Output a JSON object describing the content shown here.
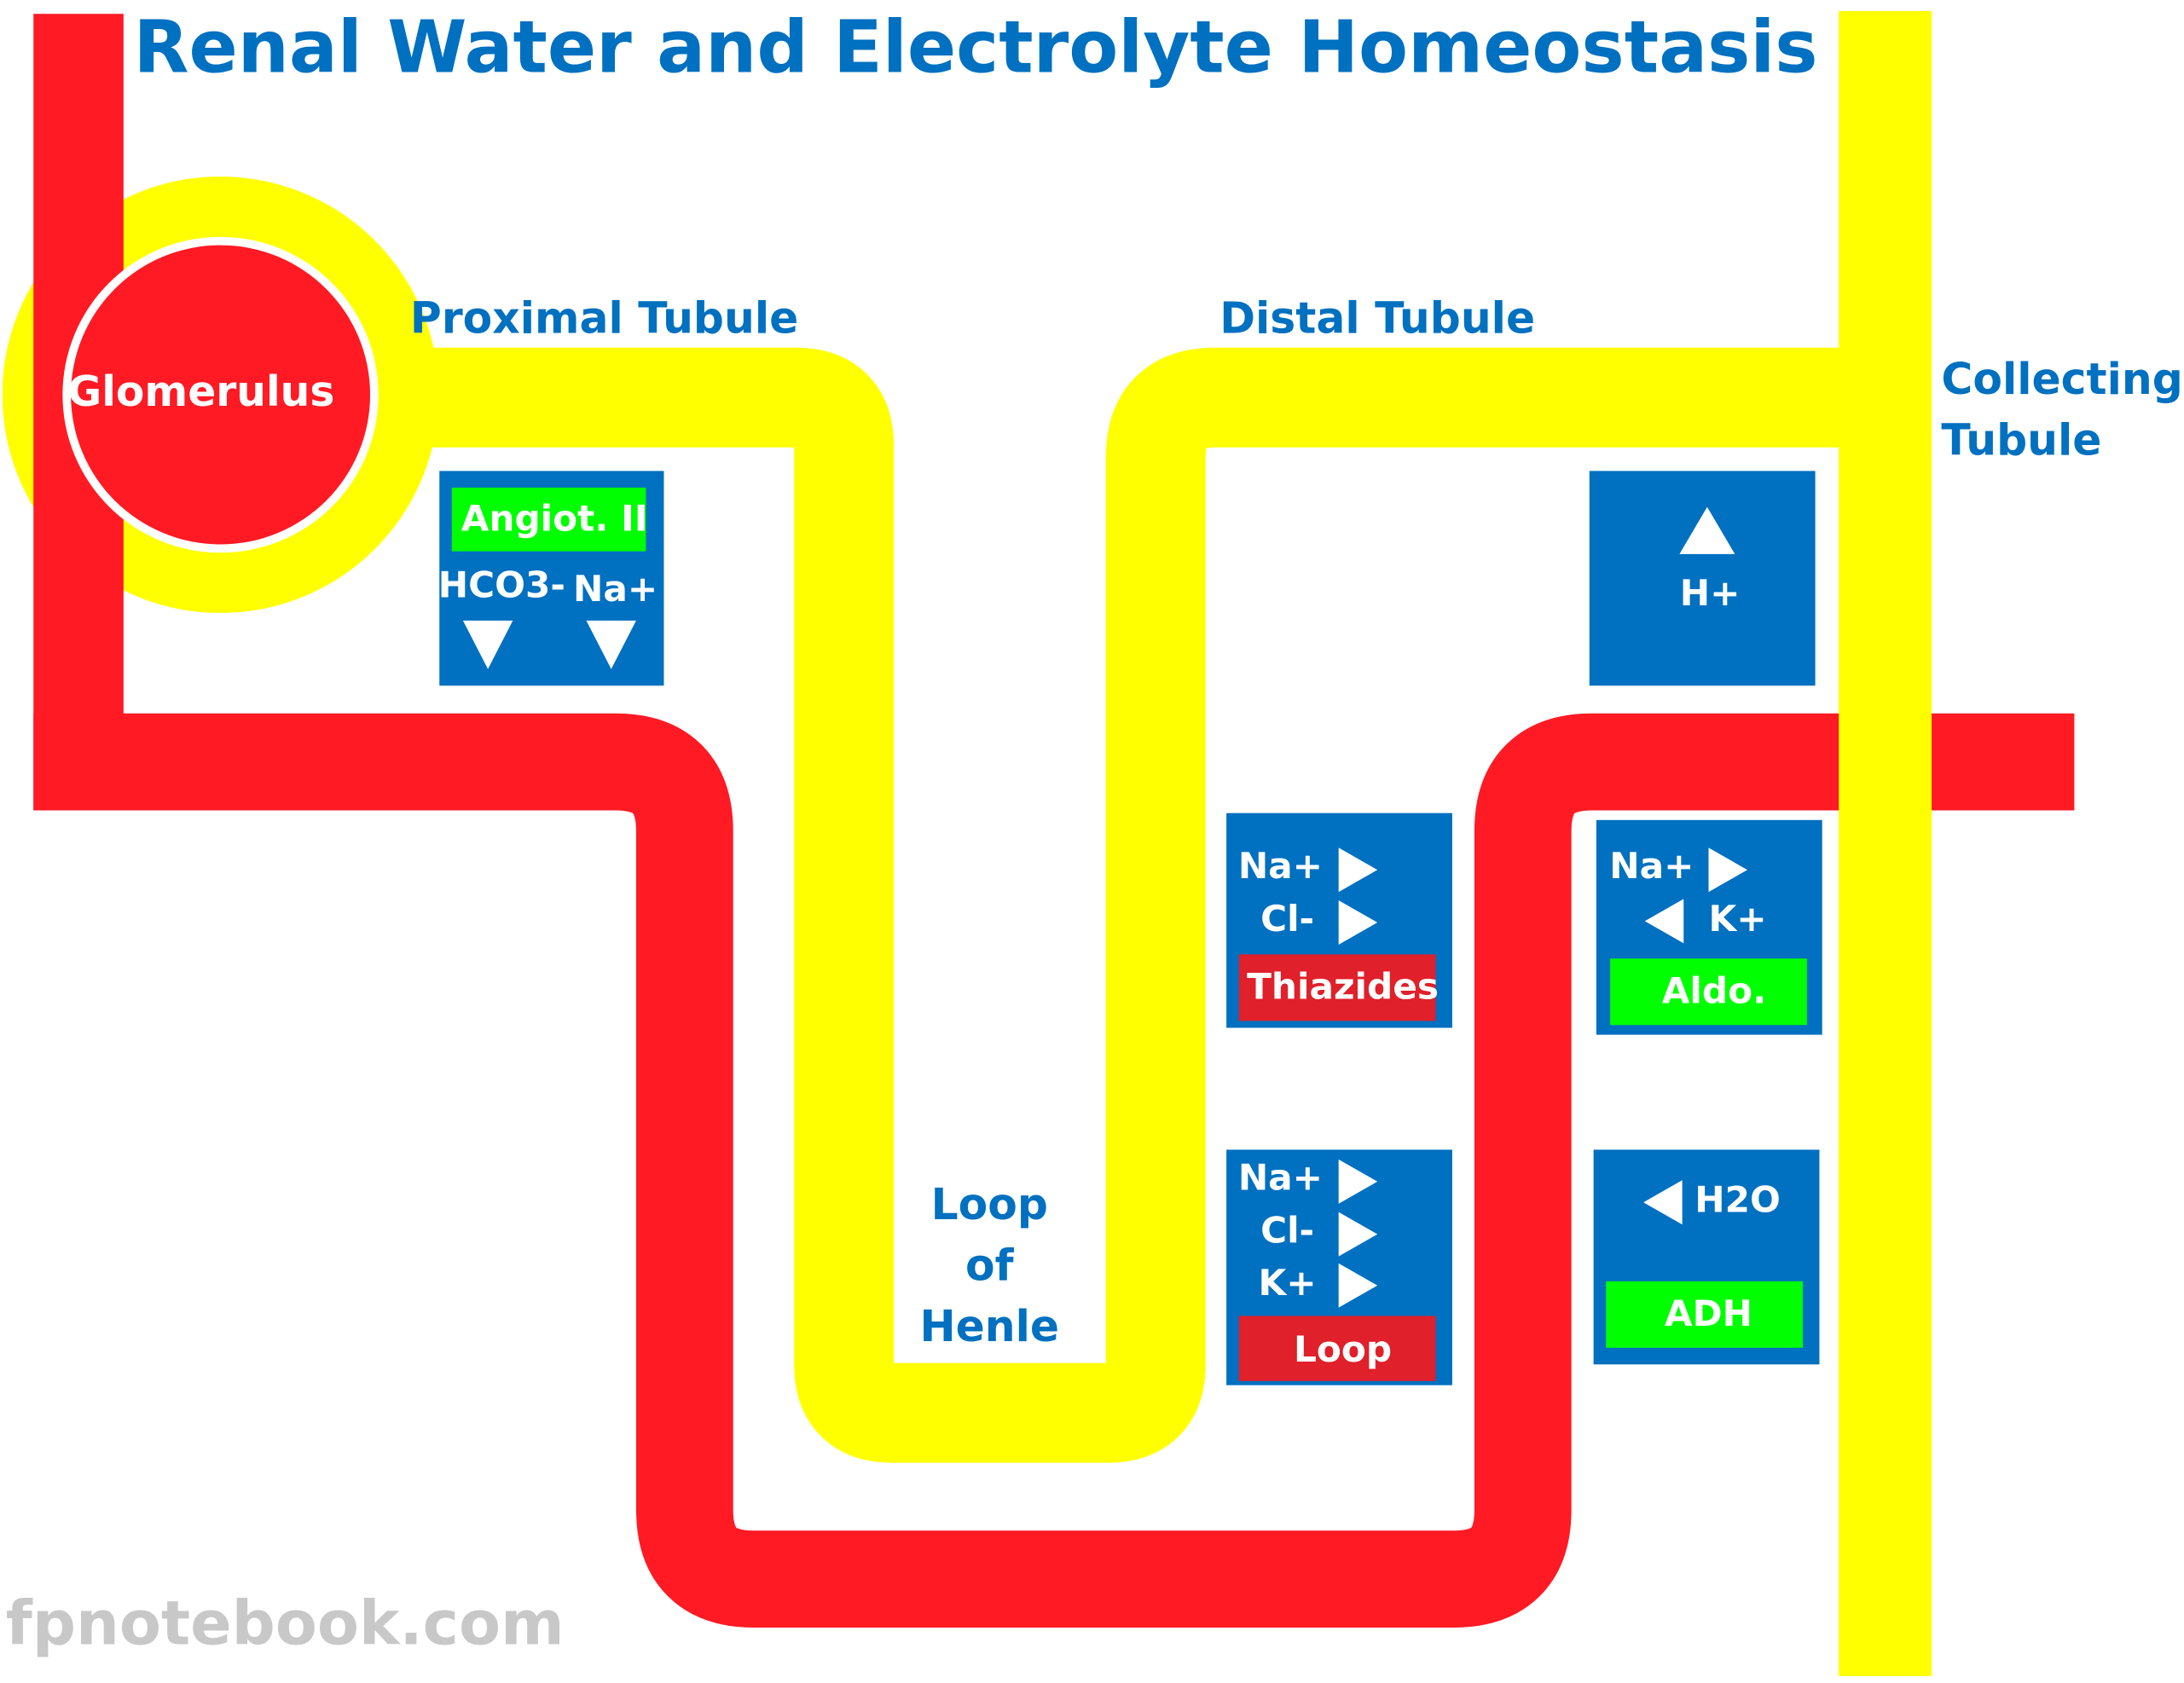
{
  "title": "Renal Water and Electrolyte Homeostasis",
  "labels": {
    "glomerulus": "Glomerulus",
    "proximal_tubule": "Proximal Tubule",
    "distal_tubule": "Distal Tubule",
    "collecting_tubule": [
      "Collecting",
      "Tubule"
    ],
    "loop_of_henle": [
      "Loop",
      "of",
      "Henle"
    ]
  },
  "boxes": {
    "proximal": {
      "hormone": "Angiot. II",
      "ions": [
        "HCO3-",
        "Na+"
      ]
    },
    "collecting_acid": {
      "ions": [
        "H+"
      ]
    },
    "distal": {
      "ions": [
        "Na+",
        "Cl-"
      ],
      "drug": "Thiazides"
    },
    "loop": {
      "ions": [
        "Na+",
        "Cl-",
        "K+"
      ],
      "drug": "Loop"
    },
    "collecting_aldo": {
      "ions": [
        "Na+",
        "K+"
      ],
      "hormone": "Aldo."
    },
    "collecting_adh": {
      "ions": [
        "H2O"
      ],
      "hormone": "ADH"
    }
  },
  "watermark": "fpnotebook.com"
}
